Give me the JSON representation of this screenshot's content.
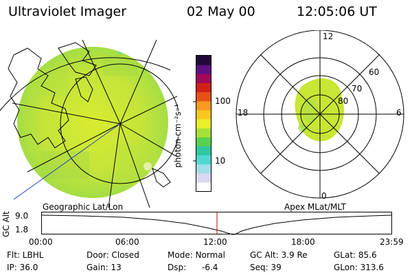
{
  "header": {
    "title": "Ultraviolet Imager",
    "date": "02 May 00",
    "time": "12:05:06 UT"
  },
  "panels": {
    "left_label": "Geographic Lat/Lon",
    "right_label": "Apex MLat/MLT"
  },
  "colorbar": {
    "unit_label": "photon cm⁻²s⁻¹",
    "tick_100": "100",
    "tick_10": "10",
    "colors": [
      "#ffffff",
      "#d8d8f0",
      "#9fdfe8",
      "#50d8d0",
      "#30c8a0",
      "#58d050",
      "#a8e038",
      "#e8f028",
      "#f8c820",
      "#f89820",
      "#e85018",
      "#d02018",
      "#a00858",
      "#601080",
      "#200838"
    ]
  },
  "polar": {
    "mlt_12": "12",
    "mlt_18": "18",
    "mlt_6": "6",
    "mlt_0": "0",
    "lat_60": "60",
    "lat_70": "70",
    "lat_80": "80"
  },
  "altitude_plot": {
    "ylabel": "GC Alt",
    "y_max": "9.0",
    "y_min": "1.8",
    "x_ticks": [
      "00:00",
      "06:00",
      "12:00",
      "18:00",
      "23:59"
    ],
    "marker_color": "#cc0000"
  },
  "info": {
    "flt": "Flt: LBHL",
    "ip": "IP: 36.0",
    "door": "Door: Closed",
    "gain": "Gain: 13",
    "mode": "Mode: Normal",
    "dsp_label": "Dsp:",
    "dsp_value": "-6.4",
    "gc_alt": "GC Alt: 3.9 Re",
    "seq": "Seq: 39",
    "glat": "GLat: 85.6",
    "glon": "GLon: 313.6"
  }
}
